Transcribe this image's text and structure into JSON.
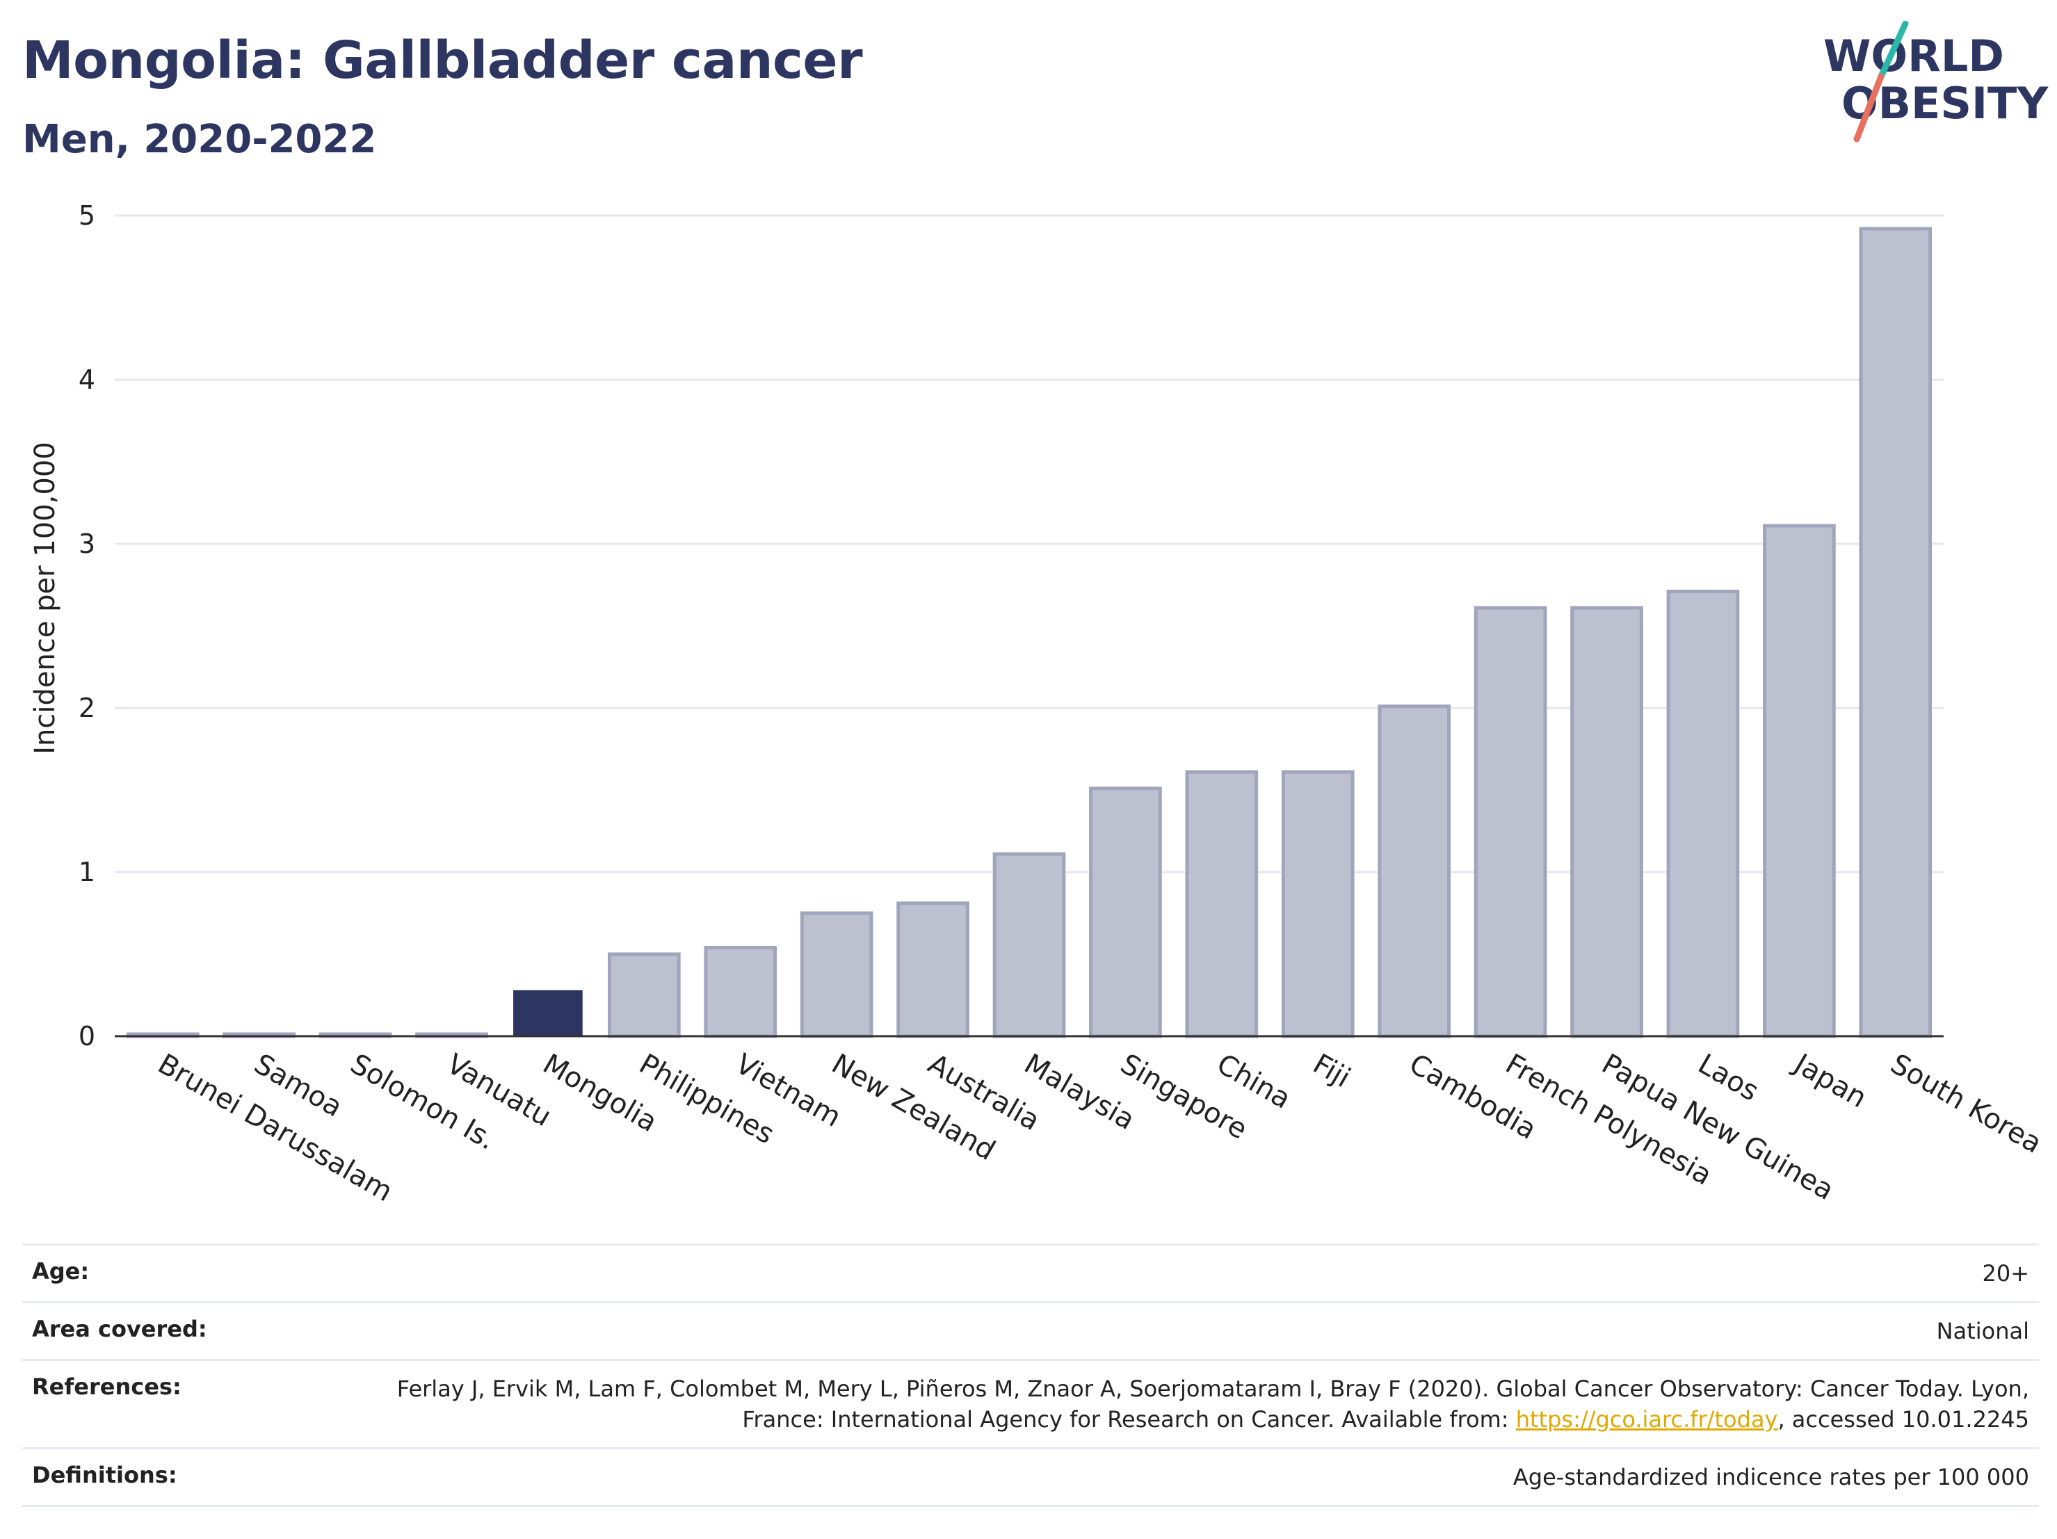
{
  "header": {
    "title": "Mongolia: Gallbladder cancer",
    "subtitle": "Men, 2020-2022",
    "logo_line1": "WORLD",
    "logo_line2": "OBESITY"
  },
  "colors": {
    "highlight": "#2d3561",
    "bar_fill": "#bcc0cf",
    "bar_stroke": "#a0a5bb",
    "grid": "#e6e7ee",
    "link": "#e0a800"
  },
  "chart_data": {
    "type": "bar",
    "title": "Mongolia: Gallbladder cancer",
    "subtitle": "Men, 2020-2022",
    "ylabel": "Incidence per 100,000",
    "xlabel": "",
    "ylim": [
      0,
      5
    ],
    "yticks": [
      0,
      1,
      2,
      3,
      4,
      5
    ],
    "grid": true,
    "highlight": "Mongolia",
    "categories": [
      "Brunei Darussalam",
      "Samoa",
      "Solomon Is.",
      "Vanuatu",
      "Mongolia",
      "Philippines",
      "Vietnam",
      "New Zealand",
      "Australia",
      "Malaysia",
      "Singapore",
      "China",
      "Fiji",
      "Cambodia",
      "French Polynesia",
      "Papua New Guinea",
      "Laos",
      "Japan",
      "South Korea"
    ],
    "values": [
      0,
      0,
      0,
      0,
      0.28,
      0.5,
      0.54,
      0.75,
      0.81,
      1.11,
      1.51,
      1.61,
      1.61,
      2.01,
      2.61,
      2.61,
      2.71,
      3.11,
      4.92
    ]
  },
  "info": {
    "age_label": "Age:",
    "age_value": "20+",
    "area_label": "Area covered:",
    "area_value": "National",
    "references_label": "References:",
    "references_text_1": "Ferlay J, Ervik M, Lam F, Colombet M, Mery L, Piñeros M, Znaor A, Soerjomataram I, Bray F (2020). Global Cancer Observatory: Cancer Today. Lyon, France: International Agency for Research on Cancer. Available from: ",
    "references_link": "https://gco.iarc.fr/today",
    "references_text_2": ", accessed 10.01.2245",
    "definitions_label": "Definitions:",
    "definitions_value": "Age-standardized indicence rates per 100 000"
  }
}
